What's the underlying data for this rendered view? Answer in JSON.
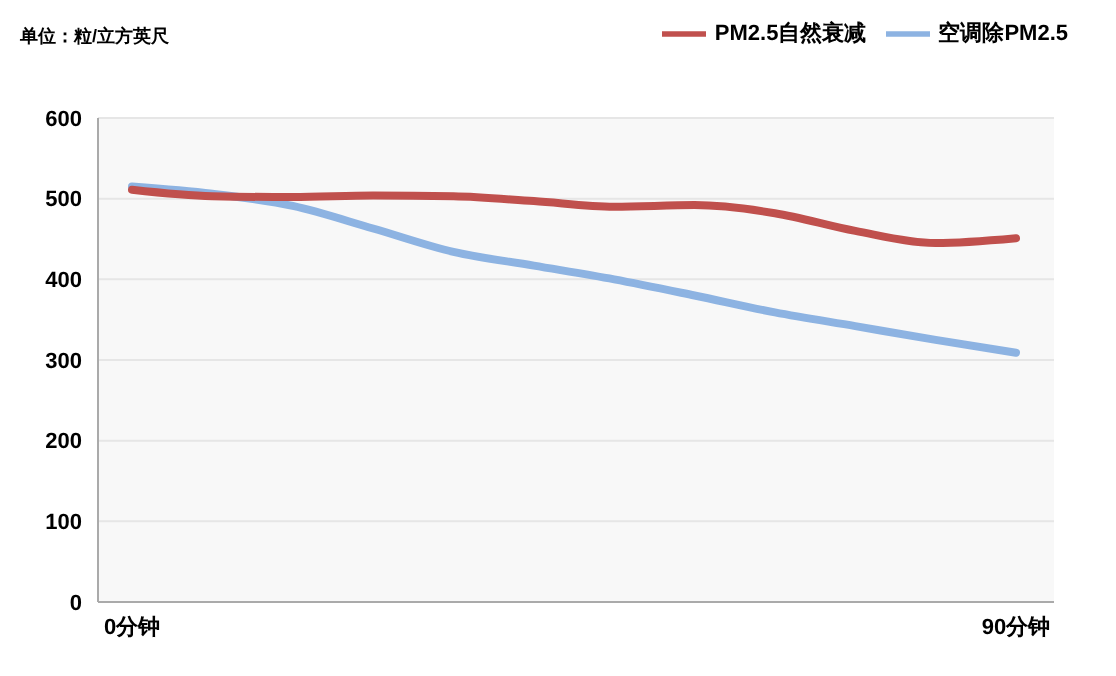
{
  "chart_data": {
    "type": "line",
    "ylabel": "单位：粒/立方英尺",
    "categories": [
      "0分钟",
      null,
      null,
      null,
      null,
      null,
      null,
      null,
      null,
      null,
      null,
      "90分钟"
    ],
    "series": [
      {
        "name": "空调除PM2.5",
        "color": "#8db3e2",
        "values": [
          515,
          506,
          491,
          463,
          434,
          417,
          400,
          380,
          359,
          342,
          325,
          309
        ]
      },
      {
        "name": "PM2.5自然衰减",
        "color": "#c0504d",
        "values": [
          511,
          503,
          502,
          504,
          503,
          497,
          490,
          492,
          482,
          460,
          445,
          451
        ]
      }
    ],
    "ylim": [
      0,
      600
    ],
    "yticks": [
      0,
      100,
      200,
      300,
      400,
      500,
      600
    ],
    "grid": "y",
    "legend": "top right",
    "marker": "none",
    "line_style": "solid"
  }
}
